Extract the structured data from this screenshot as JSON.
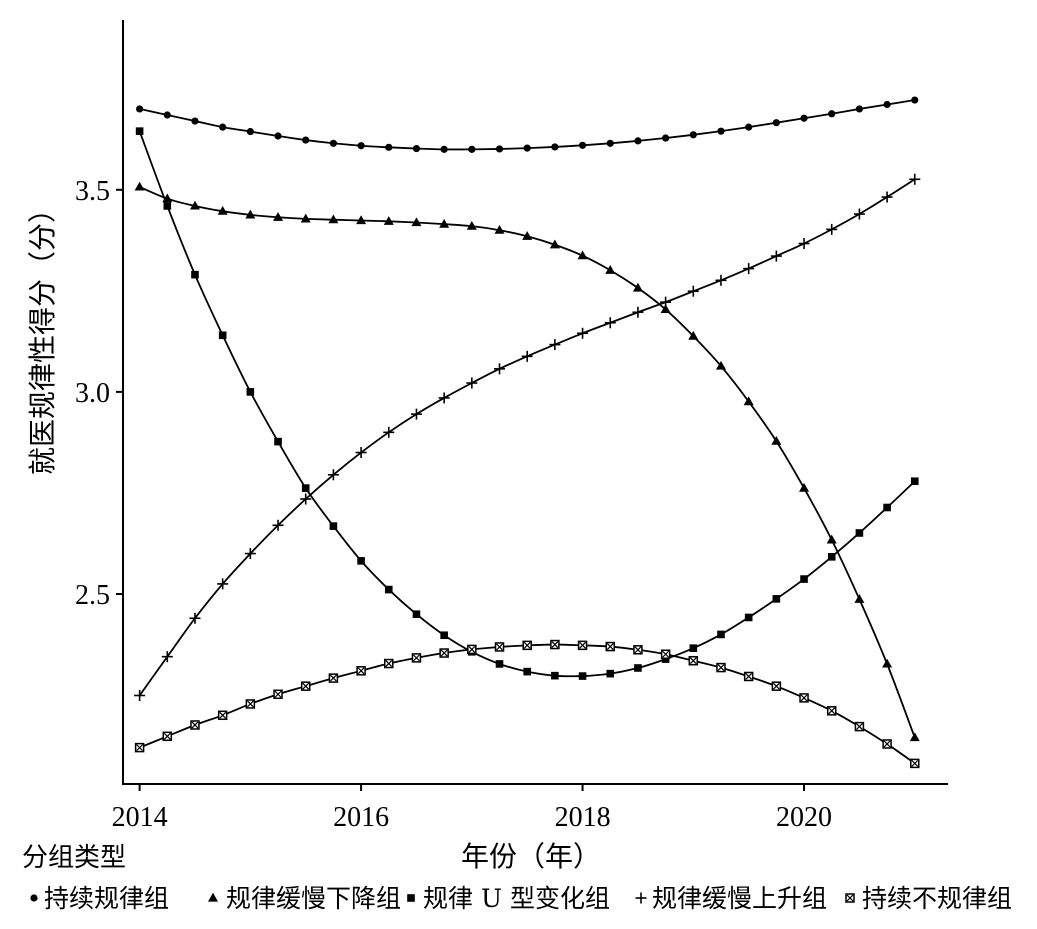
{
  "chart_data": {
    "type": "line",
    "xlabel": "年份（年）",
    "ylabel": "就医规律性得分（分）",
    "xlim": [
      2013.85,
      2021.3
    ],
    "ylim": [
      2.03,
      3.92
    ],
    "xticks": [
      2014,
      2016,
      2018,
      2020
    ],
    "xtick_labels": [
      "2014",
      "2016",
      "2018",
      "2020"
    ],
    "yticks": [
      2.5,
      3.0,
      3.5
    ],
    "ytick_labels": [
      "2.5",
      "3.0",
      "3.5"
    ],
    "grid": false,
    "legend_position": "bottom-left",
    "legend_title": "分组类型",
    "x": [
      2014.0,
      2014.25,
      2014.5,
      2014.75,
      2015.0,
      2015.25,
      2015.5,
      2015.75,
      2016.0,
      2016.25,
      2016.5,
      2016.75,
      2017.0,
      2017.25,
      2017.5,
      2017.75,
      2018.0,
      2018.25,
      2018.5,
      2018.75,
      2019.0,
      2019.25,
      2019.5,
      2019.75,
      2020.0,
      2020.25,
      2020.5,
      2020.75,
      2021.0
    ],
    "series": [
      {
        "name": "持续规律组",
        "marker": "circle",
        "values": [
          3.7,
          3.685,
          3.67,
          3.655,
          3.644,
          3.633,
          3.623,
          3.615,
          3.609,
          3.605,
          3.602,
          3.6,
          3.6,
          3.601,
          3.603,
          3.606,
          3.61,
          3.615,
          3.621,
          3.628,
          3.636,
          3.645,
          3.655,
          3.666,
          3.677,
          3.688,
          3.7,
          3.711,
          3.722
        ]
      },
      {
        "name": "规律缓慢下降组",
        "marker": "triangle",
        "values": [
          3.507,
          3.478,
          3.46,
          3.447,
          3.438,
          3.432,
          3.428,
          3.426,
          3.424,
          3.422,
          3.419,
          3.415,
          3.41,
          3.4,
          3.385,
          3.364,
          3.337,
          3.301,
          3.257,
          3.204,
          3.138,
          3.064,
          2.976,
          2.878,
          2.762,
          2.634,
          2.487,
          2.327,
          2.145
        ]
      },
      {
        "name": "规律 U 型变化组",
        "marker": "square",
        "values": [
          3.645,
          3.46,
          3.29,
          3.14,
          3.0,
          2.877,
          2.762,
          2.668,
          2.582,
          2.511,
          2.45,
          2.398,
          2.357,
          2.327,
          2.308,
          2.298,
          2.297,
          2.303,
          2.317,
          2.339,
          2.366,
          2.4,
          2.442,
          2.488,
          2.537,
          2.592,
          2.651,
          2.714,
          2.779
        ]
      },
      {
        "name": "规律缓慢上升组",
        "marker": "plus",
        "values": [
          2.249,
          2.345,
          2.44,
          2.525,
          2.6,
          2.67,
          2.735,
          2.795,
          2.85,
          2.9,
          2.945,
          2.985,
          3.022,
          3.057,
          3.088,
          3.117,
          3.145,
          3.171,
          3.197,
          3.222,
          3.249,
          3.276,
          3.305,
          3.336,
          3.367,
          3.402,
          3.44,
          3.482,
          3.526
        ]
      },
      {
        "name": "持续不规律组",
        "marker": "square-x",
        "values": [
          2.12,
          2.148,
          2.176,
          2.2,
          2.228,
          2.252,
          2.272,
          2.292,
          2.31,
          2.328,
          2.342,
          2.354,
          2.363,
          2.369,
          2.373,
          2.375,
          2.373,
          2.37,
          2.362,
          2.351,
          2.335,
          2.318,
          2.296,
          2.272,
          2.243,
          2.211,
          2.172,
          2.129,
          2.081
        ]
      }
    ]
  }
}
